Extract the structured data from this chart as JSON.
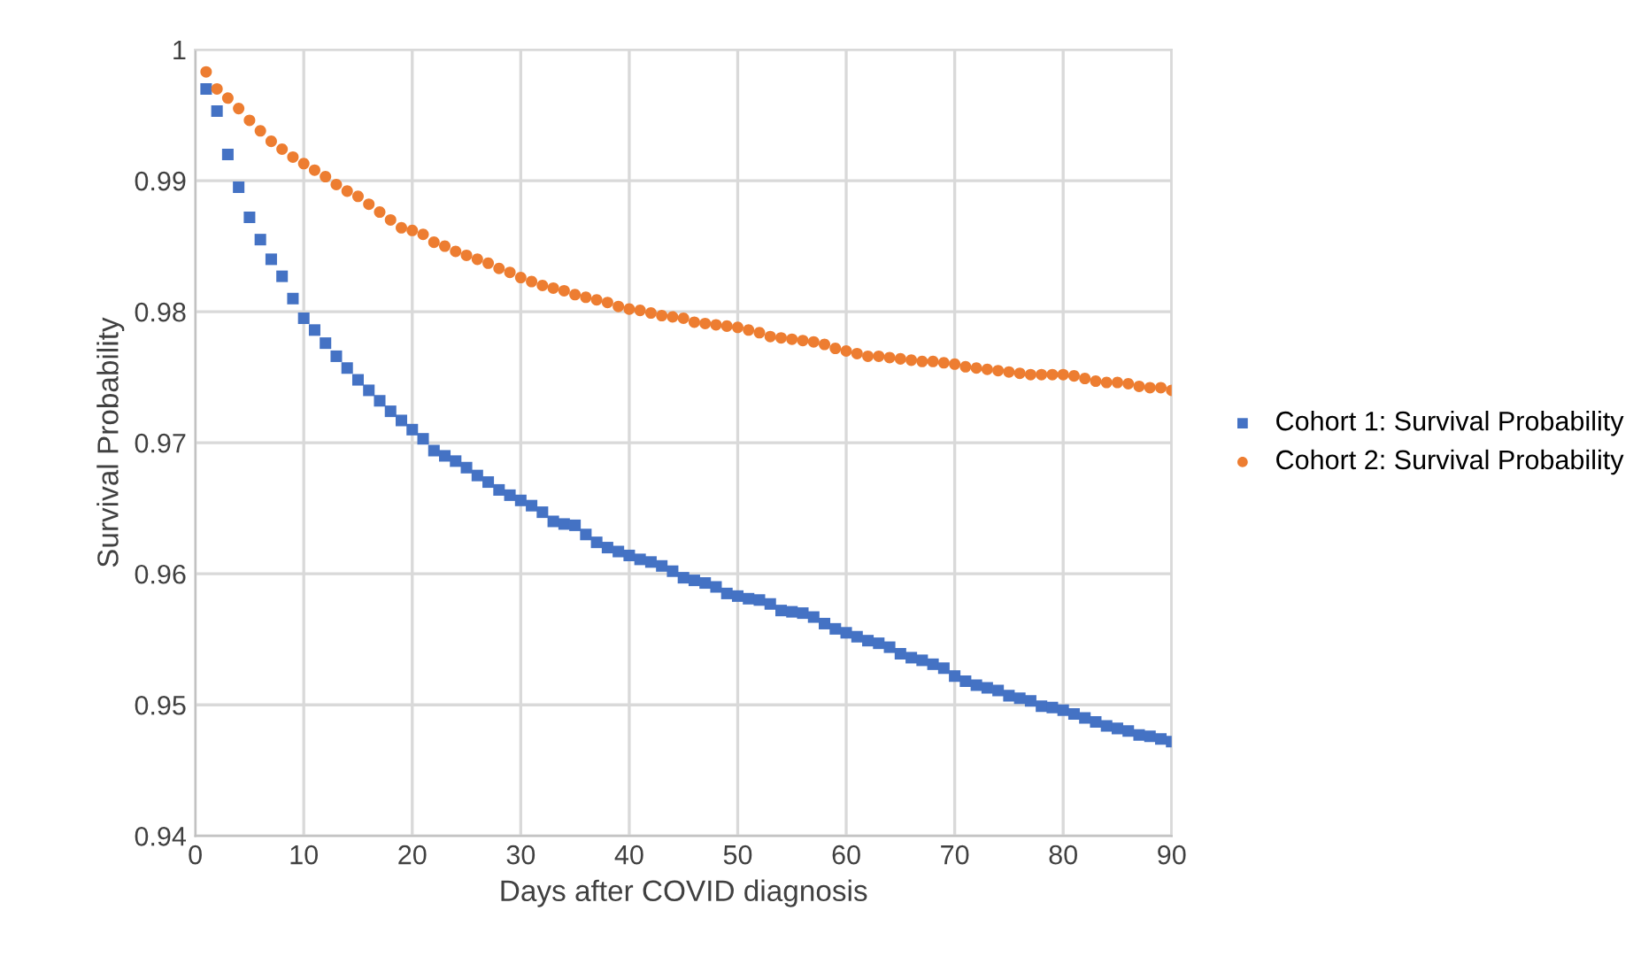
{
  "chart_data": {
    "type": "scatter",
    "xlabel": "Days after COVID diagnosis",
    "ylabel": "Survival Probability",
    "x": [
      1,
      2,
      3,
      4,
      5,
      6,
      7,
      8,
      9,
      10,
      11,
      12,
      13,
      14,
      15,
      16,
      17,
      18,
      19,
      20,
      21,
      22,
      23,
      24,
      25,
      26,
      27,
      28,
      29,
      30,
      31,
      32,
      33,
      34,
      35,
      36,
      37,
      38,
      39,
      40,
      41,
      42,
      43,
      44,
      45,
      46,
      47,
      48,
      49,
      50,
      51,
      52,
      53,
      54,
      55,
      56,
      57,
      58,
      59,
      60,
      61,
      62,
      63,
      64,
      65,
      66,
      67,
      68,
      69,
      70,
      71,
      72,
      73,
      74,
      75,
      76,
      77,
      78,
      79,
      80,
      81,
      82,
      83,
      84,
      85,
      86,
      87,
      88,
      89,
      90
    ],
    "series": [
      {
        "name": "Cohort 1: Survival Probability",
        "color": "#4472c4",
        "marker": "square",
        "values": [
          0.997,
          0.9953,
          0.992,
          0.9895,
          0.9872,
          0.9855,
          0.984,
          0.9827,
          0.981,
          0.9795,
          0.9786,
          0.9776,
          0.9766,
          0.9757,
          0.9748,
          0.974,
          0.9732,
          0.9724,
          0.9717,
          0.971,
          0.9703,
          0.9694,
          0.969,
          0.9686,
          0.9681,
          0.9675,
          0.967,
          0.9664,
          0.966,
          0.9656,
          0.9652,
          0.9647,
          0.964,
          0.9638,
          0.9637,
          0.963,
          0.9624,
          0.962,
          0.9617,
          0.9614,
          0.9611,
          0.9609,
          0.9606,
          0.9602,
          0.9597,
          0.9595,
          0.9593,
          0.959,
          0.9585,
          0.9583,
          0.9581,
          0.958,
          0.9577,
          0.9572,
          0.9571,
          0.957,
          0.9567,
          0.9562,
          0.9558,
          0.9555,
          0.9552,
          0.9549,
          0.9547,
          0.9544,
          0.9539,
          0.9536,
          0.9534,
          0.9531,
          0.9528,
          0.9522,
          0.9518,
          0.9515,
          0.9513,
          0.9511,
          0.9507,
          0.9505,
          0.9503,
          0.9499,
          0.9498,
          0.9496,
          0.9493,
          0.949,
          0.9487,
          0.9484,
          0.9482,
          0.948,
          0.9477,
          0.9476,
          0.9474,
          0.9472
        ]
      },
      {
        "name": "Cohort 2: Survival Probability",
        "color": "#ed7d31",
        "marker": "circle",
        "values": [
          0.9983,
          0.997,
          0.9963,
          0.9955,
          0.9946,
          0.9938,
          0.993,
          0.9924,
          0.9918,
          0.9913,
          0.9908,
          0.9903,
          0.9897,
          0.9892,
          0.9888,
          0.9882,
          0.9876,
          0.987,
          0.9864,
          0.9862,
          0.9859,
          0.9853,
          0.985,
          0.9846,
          0.9843,
          0.984,
          0.9837,
          0.9833,
          0.983,
          0.9826,
          0.9823,
          0.982,
          0.9818,
          0.9816,
          0.9813,
          0.9811,
          0.9809,
          0.9807,
          0.9804,
          0.9802,
          0.9801,
          0.9799,
          0.9797,
          0.9796,
          0.9795,
          0.9792,
          0.9791,
          0.979,
          0.9789,
          0.9788,
          0.9786,
          0.9784,
          0.9781,
          0.978,
          0.9779,
          0.9778,
          0.9777,
          0.9775,
          0.9772,
          0.977,
          0.9768,
          0.9766,
          0.9766,
          0.9765,
          0.9764,
          0.9763,
          0.9762,
          0.9762,
          0.9761,
          0.976,
          0.9758,
          0.9757,
          0.9756,
          0.9755,
          0.9754,
          0.9753,
          0.9752,
          0.9752,
          0.9752,
          0.9752,
          0.9751,
          0.9749,
          0.9747,
          0.9746,
          0.9746,
          0.9745,
          0.9743,
          0.9742,
          0.9742,
          0.974
        ]
      }
    ],
    "xlim": [
      0,
      90
    ],
    "xticks": [
      0,
      10,
      20,
      30,
      40,
      50,
      60,
      70,
      80,
      90
    ],
    "ylim": [
      0.94,
      1
    ],
    "yticks": [
      0.94,
      0.95,
      0.96,
      0.97,
      0.98,
      0.99,
      1
    ],
    "grid": true,
    "legend": "right"
  }
}
